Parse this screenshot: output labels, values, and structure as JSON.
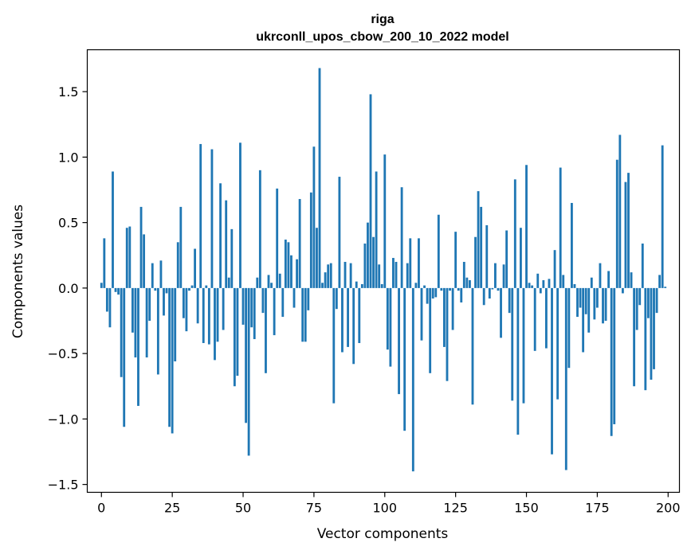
{
  "chart_data": {
    "type": "bar",
    "title": "riga",
    "subtitle": "ukrconll_upos_cbow_200_10_2022 model",
    "xlabel": "Vector components",
    "ylabel": "Components values",
    "xlim": [
      -5,
      204
    ],
    "ylim": [
      -1.56,
      1.82
    ],
    "xticks": [
      0,
      25,
      50,
      75,
      100,
      125,
      150,
      175,
      200
    ],
    "yticks": [
      -1.5,
      -1.0,
      -0.5,
      0.0,
      0.5,
      1.0,
      1.5
    ],
    "ytick_labels": [
      "−1.5",
      "−1.0",
      "−0.5",
      "0.0",
      "0.5",
      "1.0",
      "1.5"
    ],
    "bar_color": "#1f77b4",
    "grid": false,
    "x": [
      0,
      1,
      2,
      3,
      4,
      5,
      6,
      7,
      8,
      9,
      10,
      11,
      12,
      13,
      14,
      15,
      16,
      17,
      18,
      19,
      20,
      21,
      22,
      23,
      24,
      25,
      26,
      27,
      28,
      29,
      30,
      31,
      32,
      33,
      34,
      35,
      36,
      37,
      38,
      39,
      40,
      41,
      42,
      43,
      44,
      45,
      46,
      47,
      48,
      49,
      50,
      51,
      52,
      53,
      54,
      55,
      56,
      57,
      58,
      59,
      60,
      61,
      62,
      63,
      64,
      65,
      66,
      67,
      68,
      69,
      70,
      71,
      72,
      73,
      74,
      75,
      76,
      77,
      78,
      79,
      80,
      81,
      82,
      83,
      84,
      85,
      86,
      87,
      88,
      89,
      90,
      91,
      92,
      93,
      94,
      95,
      96,
      97,
      98,
      99,
      100,
      101,
      102,
      103,
      104,
      105,
      106,
      107,
      108,
      109,
      110,
      111,
      112,
      113,
      114,
      115,
      116,
      117,
      118,
      119,
      120,
      121,
      122,
      123,
      124,
      125,
      126,
      127,
      128,
      129,
      130,
      131,
      132,
      133,
      134,
      135,
      136,
      137,
      138,
      139,
      140,
      141,
      142,
      143,
      144,
      145,
      146,
      147,
      148,
      149,
      150,
      151,
      152,
      153,
      154,
      155,
      156,
      157,
      158,
      159,
      160,
      161,
      162,
      163,
      164,
      165,
      166,
      167,
      168,
      169,
      170,
      171,
      172,
      173,
      174,
      175,
      176,
      177,
      178,
      179,
      180,
      181,
      182,
      183,
      184,
      185,
      186,
      187,
      188,
      189,
      190,
      191,
      192,
      193,
      194,
      195,
      196,
      197,
      198,
      199
    ],
    "values": [
      0.04,
      0.38,
      -0.18,
      -0.3,
      0.89,
      -0.03,
      -0.05,
      -0.68,
      -1.06,
      0.46,
      0.47,
      -0.34,
      -0.53,
      -0.9,
      0.62,
      0.41,
      -0.53,
      -0.25,
      0.19,
      -0.02,
      -0.66,
      0.21,
      -0.21,
      -0.04,
      -1.06,
      -1.11,
      -0.56,
      0.35,
      0.62,
      -0.23,
      -0.33,
      -0.02,
      0.02,
      0.3,
      -0.27,
      1.1,
      -0.42,
      0.02,
      -0.43,
      1.06,
      -0.55,
      -0.41,
      0.8,
      -0.32,
      0.67,
      0.08,
      0.45,
      -0.75,
      -0.67,
      1.11,
      -0.28,
      -1.03,
      -1.28,
      -0.3,
      -0.39,
      0.08,
      0.9,
      -0.19,
      -0.65,
      0.1,
      0.04,
      -0.36,
      0.76,
      0.11,
      -0.22,
      0.37,
      0.35,
      0.25,
      -0.15,
      0.22,
      0.68,
      -0.41,
      -0.41,
      -0.17,
      0.73,
      1.08,
      0.46,
      1.68,
      0.04,
      0.12,
      0.18,
      0.19,
      -0.88,
      -0.16,
      0.85,
      -0.49,
      0.2,
      -0.45,
      0.19,
      -0.58,
      0.05,
      -0.42,
      0.03,
      0.34,
      0.5,
      1.48,
      0.39,
      0.89,
      0.18,
      0.03,
      1.02,
      -0.47,
      -0.6,
      0.23,
      0.2,
      -0.81,
      0.77,
      -1.09,
      0.19,
      0.38,
      -1.4,
      0.04,
      0.38,
      -0.4,
      0.02,
      -0.12,
      -0.65,
      -0.08,
      -0.07,
      0.56,
      -0.02,
      -0.45,
      -0.71,
      -0.02,
      -0.32,
      0.43,
      -0.02,
      -0.11,
      0.2,
      0.08,
      0.06,
      -0.89,
      0.39,
      0.74,
      0.62,
      -0.13,
      0.48,
      -0.08,
      -0.01,
      0.19,
      -0.02,
      -0.38,
      0.18,
      0.44,
      -0.19,
      -0.86,
      0.83,
      -1.12,
      0.46,
      -0.88,
      0.94,
      0.04,
      0.02,
      -0.48,
      0.11,
      -0.04,
      0.06,
      -0.46,
      0.07,
      -1.27,
      0.29,
      -0.85,
      0.92,
      0.1,
      -1.39,
      -0.61,
      0.65,
      0.03,
      -0.22,
      -0.15,
      -0.49,
      -0.2,
      -0.34,
      0.08,
      -0.24,
      -0.15,
      0.19,
      -0.27,
      -0.25,
      0.13,
      -1.13,
      -1.04,
      0.98,
      1.17,
      -0.04,
      0.81,
      0.88,
      0.12,
      -0.75,
      -0.32,
      -0.13,
      0.34,
      -0.78,
      -0.23,
      -0.7,
      -0.62,
      -0.19,
      0.1,
      1.09,
      0.01
    ]
  }
}
